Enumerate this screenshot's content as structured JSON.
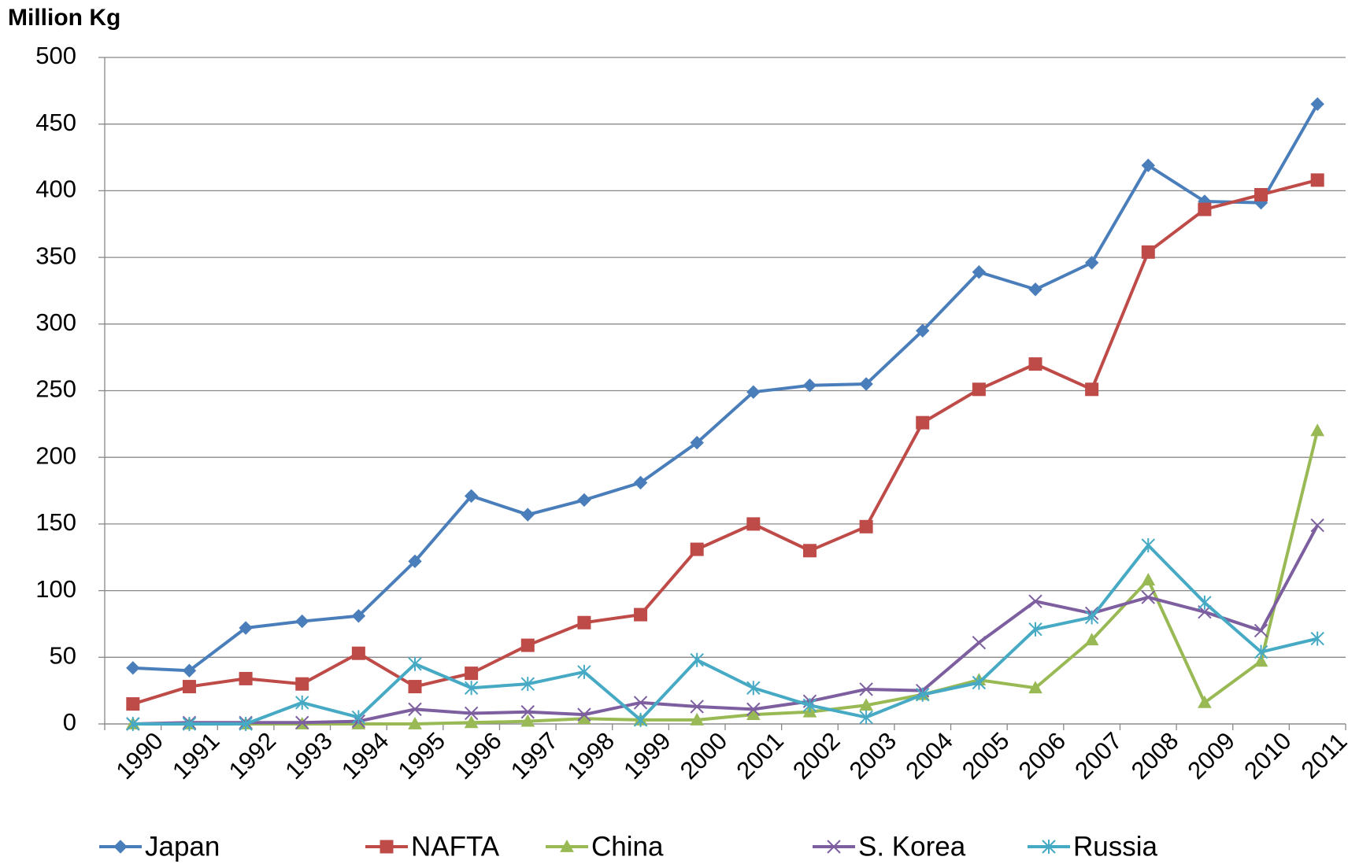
{
  "chart_data": {
    "type": "line",
    "title": "Million Kg",
    "categories": [
      "1990",
      "1991",
      "1992",
      "1993",
      "1994",
      "1995",
      "1996",
      "1997",
      "1998",
      "1999",
      "2000",
      "2001",
      "2002",
      "2003",
      "2004",
      "2005",
      "2006",
      "2007",
      "2008",
      "2009",
      "2010",
      "2011"
    ],
    "ylim": [
      0,
      500
    ],
    "yticks": [
      0,
      50,
      100,
      150,
      200,
      250,
      300,
      350,
      400,
      450,
      500
    ],
    "grid": true,
    "legend": "bottom",
    "series": [
      {
        "name": "Japan",
        "color": "#4a7ebb",
        "marker": "diamond",
        "values": [
          42,
          40,
          72,
          77,
          81,
          122,
          171,
          157,
          168,
          181,
          211,
          249,
          254,
          255,
          295,
          339,
          326,
          346,
          419,
          392,
          391,
          465
        ]
      },
      {
        "name": "NAFTA",
        "color": "#be4b48",
        "marker": "square",
        "values": [
          15,
          28,
          34,
          30,
          53,
          28,
          38,
          59,
          76,
          82,
          131,
          150,
          130,
          148,
          226,
          251,
          270,
          251,
          354,
          386,
          397,
          408
        ]
      },
      {
        "name": "China",
        "color": "#98b954",
        "marker": "triangle",
        "values": [
          0,
          0,
          0,
          0,
          0,
          0,
          1,
          2,
          4,
          3,
          3,
          7,
          9,
          14,
          22,
          33,
          27,
          63,
          108,
          16,
          47,
          220
        ]
      },
      {
        "name": "S. Korea",
        "color": "#7d5fa0",
        "marker": "x",
        "values": [
          0,
          1,
          1,
          1,
          2,
          11,
          8,
          9,
          7,
          16,
          13,
          11,
          17,
          26,
          25,
          61,
          92,
          83,
          95,
          84,
          70,
          149
        ]
      },
      {
        "name": "Russia",
        "color": "#46aac5",
        "marker": "star",
        "values": [
          0,
          0,
          0,
          16,
          5,
          45,
          27,
          30,
          39,
          3,
          48,
          27,
          14,
          5,
          22,
          31,
          71,
          80,
          134,
          91,
          54,
          64
        ]
      }
    ]
  }
}
